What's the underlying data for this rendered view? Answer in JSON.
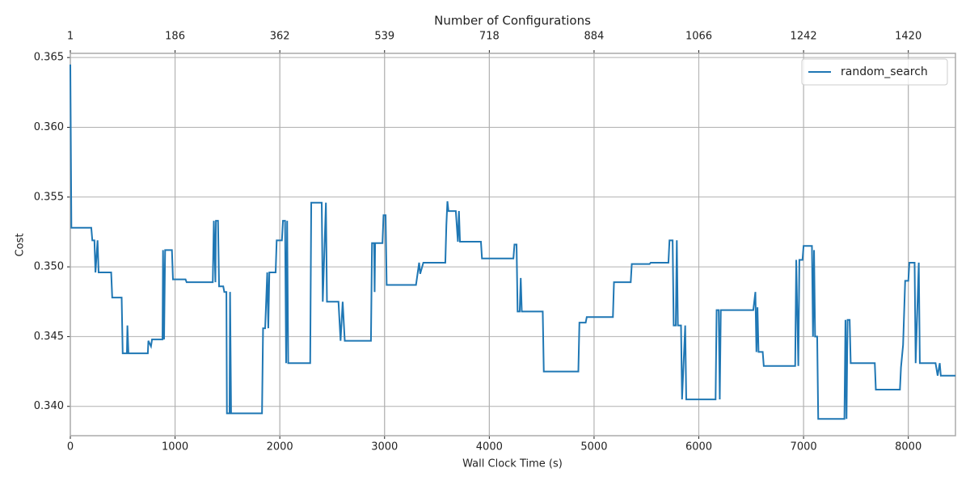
{
  "chart_data": {
    "type": "line",
    "xlabel": "Wall Clock Time (s)",
    "ylabel": "Cost",
    "x2label": "Number of Configurations",
    "x": [
      0,
      10,
      200,
      210,
      230,
      240,
      260,
      270,
      390,
      400,
      490,
      500,
      540,
      545,
      555,
      740,
      745,
      770,
      780,
      880,
      885,
      895,
      905,
      970,
      980,
      1100,
      1110,
      1360,
      1370,
      1385,
      1390,
      1410,
      1420,
      1460,
      1470,
      1490,
      1495,
      1520,
      1525,
      1535,
      1830,
      1840,
      1860,
      1880,
      1890,
      1900,
      1960,
      1970,
      2020,
      2030,
      2050,
      2060,
      2070,
      2080,
      2290,
      2300,
      2400,
      2410,
      2440,
      2450,
      2560,
      2580,
      2600,
      2620,
      2870,
      2880,
      2900,
      2905,
      2910,
      2980,
      2990,
      3010,
      3020,
      3300,
      3330,
      3340,
      3370,
      3580,
      3590,
      3600,
      3610,
      3680,
      3700,
      3710,
      3720,
      3920,
      3930,
      4230,
      4240,
      4260,
      4270,
      4290,
      4300,
      4310,
      4510,
      4520,
      4850,
      4860,
      4920,
      4930,
      5180,
      5190,
      5350,
      5360,
      5530,
      5540,
      5710,
      5720,
      5750,
      5760,
      5780,
      5790,
      5800,
      5830,
      5840,
      5870,
      5880,
      6160,
      6170,
      6190,
      6200,
      6210,
      6520,
      6540,
      6550,
      6560,
      6570,
      6610,
      6620,
      6920,
      6930,
      6950,
      6960,
      6990,
      7000,
      7080,
      7090,
      7100,
      7110,
      7130,
      7140,
      7390,
      7400,
      7410,
      7420,
      7440,
      7450,
      7680,
      7690,
      7920,
      7930,
      7950,
      7970,
      8000,
      8010,
      8060,
      8070,
      8100,
      8110,
      8260,
      8280,
      8300,
      8310,
      8450
    ],
    "series": [
      {
        "name": "random_search",
        "color": "#1f77b4",
        "values": [
          0.3645,
          0.3528,
          0.3528,
          0.3519,
          0.3519,
          0.3496,
          0.3519,
          0.3496,
          0.3496,
          0.3478,
          0.3478,
          0.3438,
          0.3438,
          0.3458,
          0.3438,
          0.3438,
          0.3447,
          0.3443,
          0.3448,
          0.3448,
          0.3512,
          0.3448,
          0.3512,
          0.3512,
          0.3491,
          0.3491,
          0.3489,
          0.3489,
          0.3533,
          0.3489,
          0.3533,
          0.3533,
          0.3486,
          0.3486,
          0.3482,
          0.3482,
          0.3395,
          0.3395,
          0.3482,
          0.3395,
          0.3395,
          0.3456,
          0.3456,
          0.3496,
          0.3456,
          0.3496,
          0.3496,
          0.3519,
          0.3519,
          0.3533,
          0.3533,
          0.3431,
          0.3533,
          0.3431,
          0.3431,
          0.3546,
          0.3546,
          0.3475,
          0.3546,
          0.3475,
          0.3475,
          0.3447,
          0.3475,
          0.3447,
          0.3447,
          0.3517,
          0.3517,
          0.3482,
          0.3517,
          0.3517,
          0.3537,
          0.3537,
          0.3487,
          0.3487,
          0.3503,
          0.3495,
          0.3503,
          0.3503,
          0.353,
          0.3547,
          0.354,
          0.354,
          0.3518,
          0.354,
          0.3518,
          0.3518,
          0.3506,
          0.3506,
          0.3516,
          0.3516,
          0.3468,
          0.3468,
          0.3492,
          0.3468,
          0.3468,
          0.3425,
          0.3425,
          0.346,
          0.346,
          0.3464,
          0.3464,
          0.3489,
          0.3489,
          0.3502,
          0.3502,
          0.3503,
          0.3503,
          0.3519,
          0.3519,
          0.3458,
          0.3458,
          0.3519,
          0.3458,
          0.3458,
          0.3405,
          0.3458,
          0.3405,
          0.3405,
          0.3469,
          0.3469,
          0.3405,
          0.3469,
          0.3469,
          0.3482,
          0.3439,
          0.3471,
          0.3439,
          0.3439,
          0.3429,
          0.3429,
          0.3505,
          0.3429,
          0.3505,
          0.3505,
          0.3515,
          0.3515,
          0.345,
          0.3512,
          0.345,
          0.345,
          0.3391,
          0.3391,
          0.3462,
          0.3391,
          0.3462,
          0.3462,
          0.3431,
          0.3431,
          0.3412,
          0.3412,
          0.3428,
          0.3444,
          0.349,
          0.349,
          0.3503,
          0.3503,
          0.3431,
          0.3503,
          0.3431,
          0.3431,
          0.3422,
          0.3431,
          0.3422,
          0.3422
        ]
      }
    ],
    "xlim": [
      0,
      8450
    ],
    "xticks": [
      0,
      1000,
      2000,
      3000,
      4000,
      5000,
      6000,
      7000,
      8000
    ],
    "x2ticks": [
      {
        "value": 0,
        "label": "1"
      },
      {
        "value": 1000,
        "label": "186"
      },
      {
        "value": 2000,
        "label": "362"
      },
      {
        "value": 3000,
        "label": "539"
      },
      {
        "value": 4000,
        "label": "718"
      },
      {
        "value": 5000,
        "label": "884"
      },
      {
        "value": 6000,
        "label": "1066"
      },
      {
        "value": 7000,
        "label": "1242"
      },
      {
        "value": 8000,
        "label": "1420"
      }
    ],
    "ylim": [
      0.3379,
      0.3653
    ],
    "yticks": [
      {
        "value": 0.34,
        "label": "0.340"
      },
      0.345,
      {
        "value": 0.35,
        "label": "0.350"
      },
      0.355,
      {
        "value": 0.36,
        "label": "0.360"
      },
      0.365
    ],
    "grid": true,
    "legend": "upper right"
  }
}
